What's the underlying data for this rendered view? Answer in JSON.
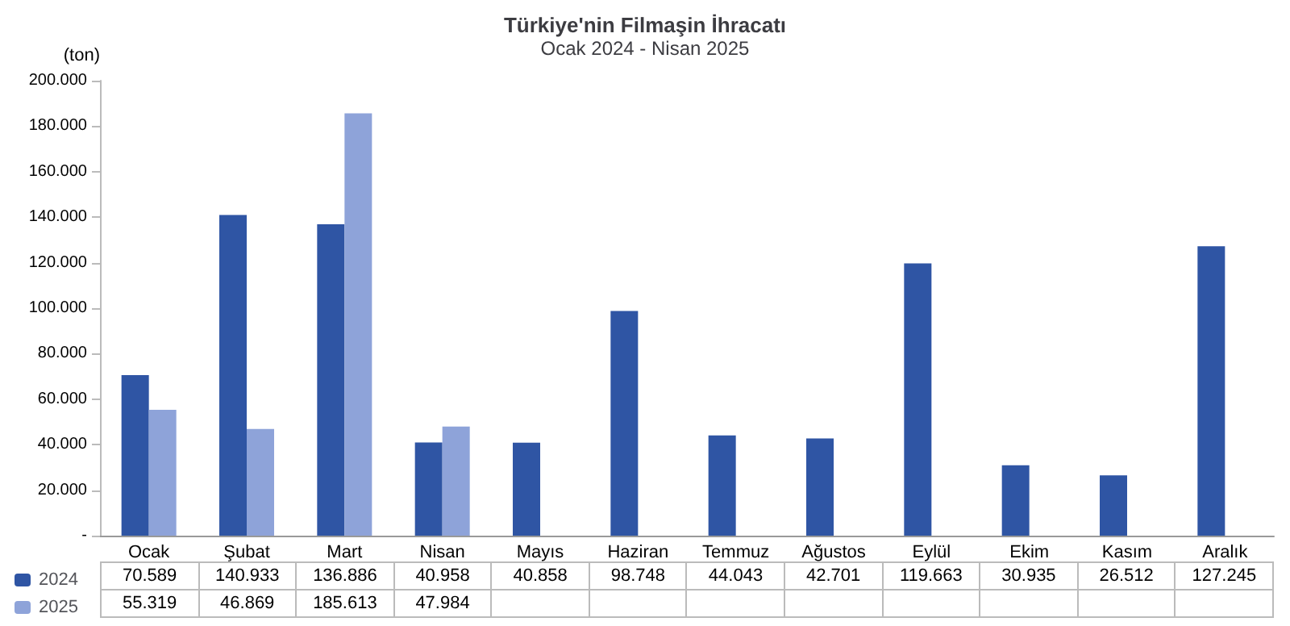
{
  "chart_data": {
    "type": "bar",
    "title": "Türkiye'nin Filmaşin İhracatı",
    "subtitle": "Ocak 2024 - Nisan 2025",
    "ylabel": "(ton)",
    "categories": [
      "Ocak",
      "Şubat",
      "Mart",
      "Nisan",
      "Mayıs",
      "Haziran",
      "Temmuz",
      "Ağustos",
      "Eylül",
      "Ekim",
      "Kasım",
      "Aralık"
    ],
    "series": [
      {
        "name": "2024",
        "color": "#2f55a4",
        "values": [
          70589,
          140933,
          136886,
          40958,
          40858,
          98748,
          44043,
          42701,
          119663,
          30935,
          26512,
          127245
        ],
        "value_labels": [
          "70.589",
          "140.933",
          "136.886",
          "40.958",
          "40.858",
          "98.748",
          "44.043",
          "42.701",
          "119.663",
          "30.935",
          "26.512",
          "127.245"
        ]
      },
      {
        "name": "2025",
        "color": "#8ea3d9",
        "values": [
          55319,
          46869,
          185613,
          47984,
          null,
          null,
          null,
          null,
          null,
          null,
          null,
          null
        ],
        "value_labels": [
          "55.319",
          "46.869",
          "185.613",
          "47.984",
          null,
          null,
          null,
          null,
          null,
          null,
          null,
          null
        ]
      }
    ],
    "ylim": [
      0,
      200000
    ],
    "yticks": [
      {
        "value": 0,
        "label": "-"
      },
      {
        "value": 20000,
        "label": "20.000"
      },
      {
        "value": 40000,
        "label": "40.000"
      },
      {
        "value": 60000,
        "label": "60.000"
      },
      {
        "value": 80000,
        "label": "80.000"
      },
      {
        "value": 100000,
        "label": "100.000"
      },
      {
        "value": 120000,
        "label": "120.000"
      },
      {
        "value": 140000,
        "label": "140.000"
      },
      {
        "value": 160000,
        "label": "160.000"
      },
      {
        "value": 180000,
        "label": "180.000"
      },
      {
        "value": 200000,
        "label": "200.000"
      }
    ],
    "grid": false,
    "legend": "bottom left"
  }
}
